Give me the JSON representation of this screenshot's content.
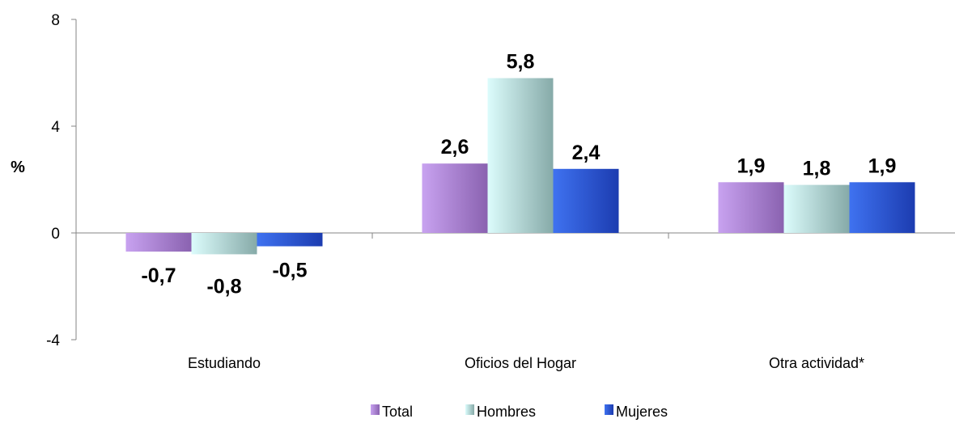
{
  "chart_data": {
    "type": "bar",
    "ylabel": "%",
    "ylim": [
      -4,
      8
    ],
    "yticks": [
      -4,
      0,
      4,
      8
    ],
    "categories": [
      "Estudiando",
      "Oficios del Hogar",
      "Otra actividad*"
    ],
    "series": [
      {
        "name": "Total",
        "values": [
          -0.7,
          2.6,
          1.9
        ],
        "labels": [
          "-0,7",
          "2,6",
          "1,9"
        ]
      },
      {
        "name": "Hombres",
        "values": [
          -0.8,
          5.8,
          1.8
        ],
        "labels": [
          "-0,8",
          "5,8",
          "1,8"
        ]
      },
      {
        "name": "Mujeres",
        "values": [
          -0.5,
          2.4,
          1.9
        ],
        "labels": [
          "-0,5",
          "2,4",
          "1,9"
        ]
      }
    ],
    "colors": {
      "Total": [
        "#c8a2f0",
        "#8a62b0"
      ],
      "Hombres": [
        "#dcfcfc",
        "#86aaa8"
      ],
      "Mujeres": [
        "#3f72f0",
        "#1c3cb0"
      ]
    },
    "legend_position": "bottom",
    "grid": false
  }
}
